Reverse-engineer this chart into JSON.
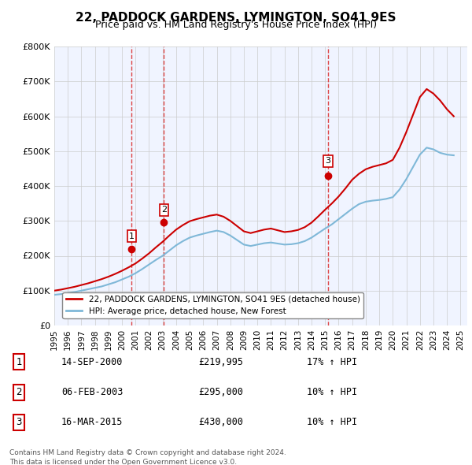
{
  "title": "22, PADDOCK GARDENS, LYMINGTON, SO41 9ES",
  "subtitle": "Price paid vs. HM Land Registry's House Price Index (HPI)",
  "legend_label_red": "22, PADDOCK GARDENS, LYMINGTON, SO41 9ES (detached house)",
  "legend_label_blue": "HPI: Average price, detached house, New Forest",
  "footnote1": "Contains HM Land Registry data © Crown copyright and database right 2024.",
  "footnote2": "This data is licensed under the Open Government Licence v3.0.",
  "transactions": [
    {
      "num": 1,
      "date": "14-SEP-2000",
      "price": "£219,995",
      "hpi": "17% ↑ HPI",
      "year": 2000.71
    },
    {
      "num": 2,
      "date": "06-FEB-2003",
      "price": "£295,000",
      "hpi": "10% ↑ HPI",
      "year": 2003.1
    },
    {
      "num": 3,
      "date": "16-MAR-2015",
      "price": "£430,000",
      "hpi": "10% ↑ HPI",
      "year": 2015.21
    }
  ],
  "sale_values": [
    219995,
    295000,
    430000
  ],
  "hpi_line": {
    "years": [
      1995,
      1995.5,
      1996,
      1996.5,
      1997,
      1997.5,
      1998,
      1998.5,
      1999,
      1999.5,
      2000,
      2000.5,
      2001,
      2001.5,
      2002,
      2002.5,
      2003,
      2003.5,
      2004,
      2004.5,
      2005,
      2005.5,
      2006,
      2006.5,
      2007,
      2007.5,
      2008,
      2008.5,
      2009,
      2009.5,
      2010,
      2010.5,
      2011,
      2011.5,
      2012,
      2012.5,
      2013,
      2013.5,
      2014,
      2014.5,
      2015,
      2015.5,
      2016,
      2016.5,
      2017,
      2017.5,
      2018,
      2018.5,
      2019,
      2019.5,
      2020,
      2020.5,
      2021,
      2021.5,
      2022,
      2022.5,
      2023,
      2023.5,
      2024,
      2024.5
    ],
    "values": [
      88000,
      90000,
      93000,
      96000,
      100000,
      104000,
      108000,
      112000,
      118000,
      124000,
      132000,
      140000,
      150000,
      162000,
      175000,
      188000,
      200000,
      215000,
      230000,
      242000,
      252000,
      258000,
      263000,
      268000,
      272000,
      268000,
      258000,
      245000,
      232000,
      228000,
      232000,
      236000,
      238000,
      235000,
      232000,
      233000,
      236000,
      242000,
      252000,
      265000,
      278000,
      290000,
      305000,
      320000,
      335000,
      348000,
      355000,
      358000,
      360000,
      363000,
      368000,
      390000,
      420000,
      455000,
      490000,
      510000,
      505000,
      495000,
      490000,
      488000
    ]
  },
  "price_paid_line": {
    "years": [
      1995,
      1995.5,
      1996,
      1996.5,
      1997,
      1997.5,
      1998,
      1998.5,
      1999,
      1999.5,
      2000,
      2000.5,
      2001,
      2001.5,
      2002,
      2002.5,
      2003,
      2003.5,
      2004,
      2004.5,
      2005,
      2005.5,
      2006,
      2006.5,
      2007,
      2007.5,
      2008,
      2008.5,
      2009,
      2009.5,
      2010,
      2010.5,
      2011,
      2011.5,
      2012,
      2012.5,
      2013,
      2013.5,
      2014,
      2014.5,
      2015,
      2015.5,
      2016,
      2016.5,
      2017,
      2017.5,
      2018,
      2018.5,
      2019,
      2019.5,
      2020,
      2020.5,
      2021,
      2021.5,
      2022,
      2022.5,
      2023,
      2023.5,
      2024,
      2024.5
    ],
    "values": [
      100000,
      103000,
      107000,
      111000,
      116000,
      121000,
      127000,
      133000,
      140000,
      148000,
      157000,
      167000,
      178000,
      192000,
      207000,
      224000,
      240000,
      258000,
      275000,
      288000,
      299000,
      305000,
      310000,
      315000,
      318000,
      312000,
      300000,
      285000,
      270000,
      265000,
      270000,
      275000,
      278000,
      273000,
      268000,
      270000,
      274000,
      282000,
      295000,
      313000,
      332000,
      350000,
      370000,
      393000,
      418000,
      435000,
      448000,
      455000,
      460000,
      465000,
      475000,
      510000,
      555000,
      605000,
      655000,
      678000,
      665000,
      645000,
      620000,
      600000
    ]
  },
  "ylim": [
    0,
    800000
  ],
  "yticks": [
    0,
    100000,
    200000,
    300000,
    400000,
    500000,
    600000,
    700000,
    800000
  ],
  "ytick_labels": [
    "£0",
    "£100K",
    "£200K",
    "£300K",
    "£400K",
    "£500K",
    "£600K",
    "£700K",
    "£800K"
  ],
  "xlim": [
    1995,
    2025.5
  ],
  "xticks": [
    1995,
    1996,
    1997,
    1998,
    1999,
    2000,
    2001,
    2002,
    2003,
    2004,
    2005,
    2006,
    2007,
    2008,
    2009,
    2010,
    2011,
    2012,
    2013,
    2014,
    2015,
    2016,
    2017,
    2018,
    2019,
    2020,
    2021,
    2022,
    2023,
    2024,
    2025
  ],
  "bg_color": "#f0f4ff",
  "grid_color": "#cccccc",
  "red_color": "#cc0000",
  "blue_color": "#7fb8d8",
  "vline_color": "#dd4444",
  "box_color": "#cc0000"
}
